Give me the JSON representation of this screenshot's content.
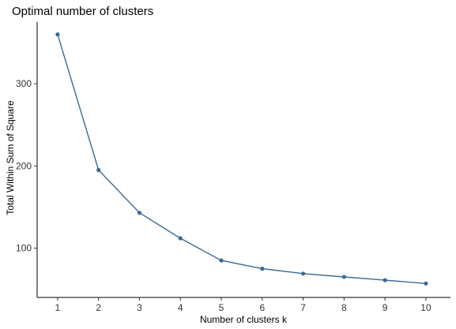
{
  "chart_data": {
    "type": "line",
    "title": "Optimal number of clusters",
    "xlabel": "Number of clusters k",
    "ylabel": "Total Within Sum of Square",
    "x": [
      1,
      2,
      3,
      4,
      5,
      6,
      7,
      8,
      9,
      10
    ],
    "series": [
      {
        "values": [
          360,
          195,
          143,
          112,
          85,
          75,
          69,
          65,
          61,
          57
        ]
      }
    ],
    "xticks": [
      "1",
      "2",
      "3",
      "4",
      "5",
      "6",
      "7",
      "8",
      "9",
      "10"
    ],
    "yticks": [
      "100",
      "200",
      "300"
    ],
    "xlim": [
      0.5,
      10.6
    ],
    "ylim": [
      40,
      375
    ],
    "grid": false,
    "line_color": "#3b6a96"
  }
}
